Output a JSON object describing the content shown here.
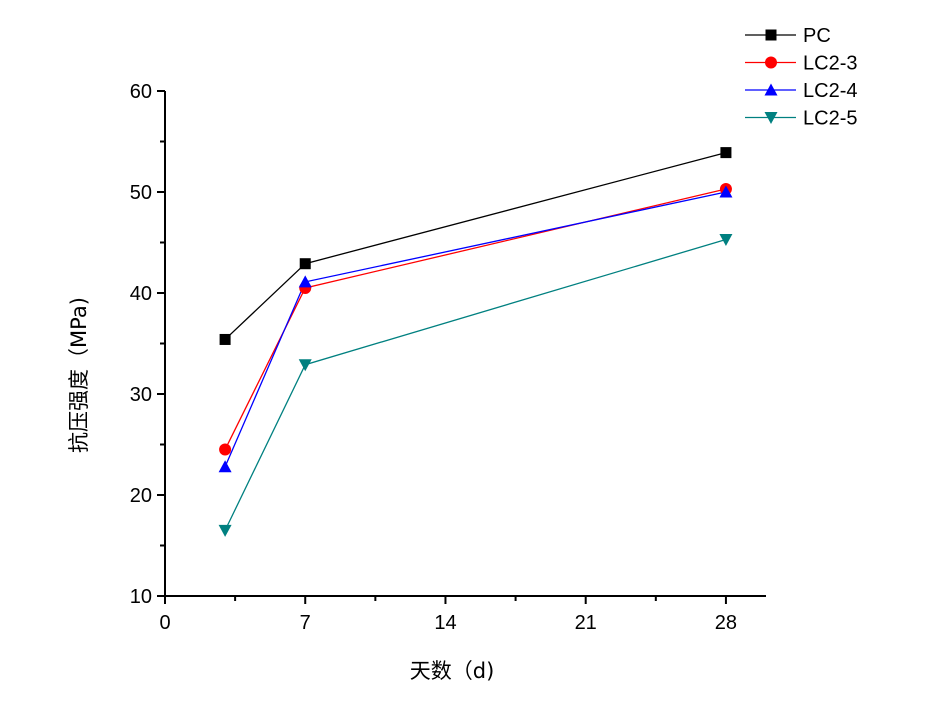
{
  "chart_data": {
    "type": "line",
    "title": "",
    "xlabel": "天数（d)",
    "ylabel": "抗压强度（MPa)",
    "xlim": [
      0,
      30
    ],
    "ylim": [
      10,
      60
    ],
    "xticks": [
      0,
      7,
      14,
      21,
      28
    ],
    "xtick_labels": [
      "0",
      "7",
      "14",
      "21",
      "28"
    ],
    "xminor": [
      3.5,
      10.5,
      17.5,
      24.5
    ],
    "yticks": [
      10,
      20,
      30,
      40,
      50,
      60
    ],
    "ytick_labels": [
      "10",
      "20",
      "30",
      "40",
      "50",
      "60"
    ],
    "yminor": [
      15,
      25,
      35,
      45,
      55
    ],
    "grid": false,
    "legend_position": "top-right",
    "x": [
      3,
      7,
      28
    ],
    "series": [
      {
        "name": "PC",
        "color": "#000000",
        "marker": "square",
        "values": [
          35.4,
          42.9,
          53.9
        ]
      },
      {
        "name": "LC2-3",
        "color": "#ff0000",
        "marker": "circle",
        "values": [
          24.5,
          40.5,
          50.3
        ]
      },
      {
        "name": "LC2-4",
        "color": "#0000ff",
        "marker": "triangle-up",
        "values": [
          22.8,
          41.1,
          50.0
        ]
      },
      {
        "name": "LC2-5",
        "color": "#008080",
        "marker": "triangle-down",
        "values": [
          16.5,
          32.9,
          45.3
        ]
      }
    ]
  }
}
